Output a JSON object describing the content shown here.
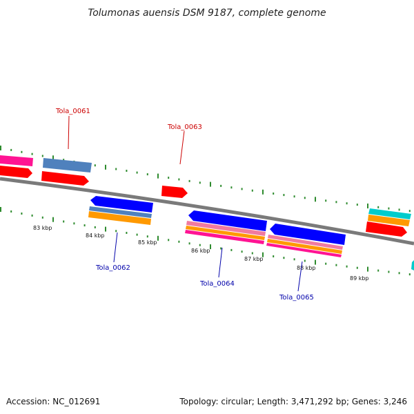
{
  "title": "Tolumonas auensis DSM 9187, complete genome",
  "footer": {
    "accession": "Accession: NC_012691",
    "stats": "Topology: circular; Length: 3,471,292 bp; Genes: 3,246"
  },
  "axis": {
    "ticks": [
      "83 kbp",
      "84 kbp",
      "85 kbp",
      "86 kbp",
      "87 kbp",
      "88 kbp",
      "89 kbp"
    ]
  },
  "genes": [
    {
      "name": "Tola_0061",
      "strand": "+"
    },
    {
      "name": "Tola_0062",
      "strand": "-"
    },
    {
      "name": "Tola_0063",
      "strand": "+"
    },
    {
      "name": "Tola_0064",
      "strand": "-"
    },
    {
      "name": "Tola_0065",
      "strand": "-"
    }
  ],
  "colors": {
    "label_plus": "#cc0000",
    "label_minus": "#0000aa",
    "cds": "#ff0000",
    "gene_minus": "#0000ff",
    "steelblue": "#4f81bd",
    "orange": "#ff9900",
    "magenta": "#ff1493",
    "pink": "#f07aa0",
    "cyan": "#00cccc",
    "dots": "#2e8b2e",
    "backbone": "#808080"
  }
}
